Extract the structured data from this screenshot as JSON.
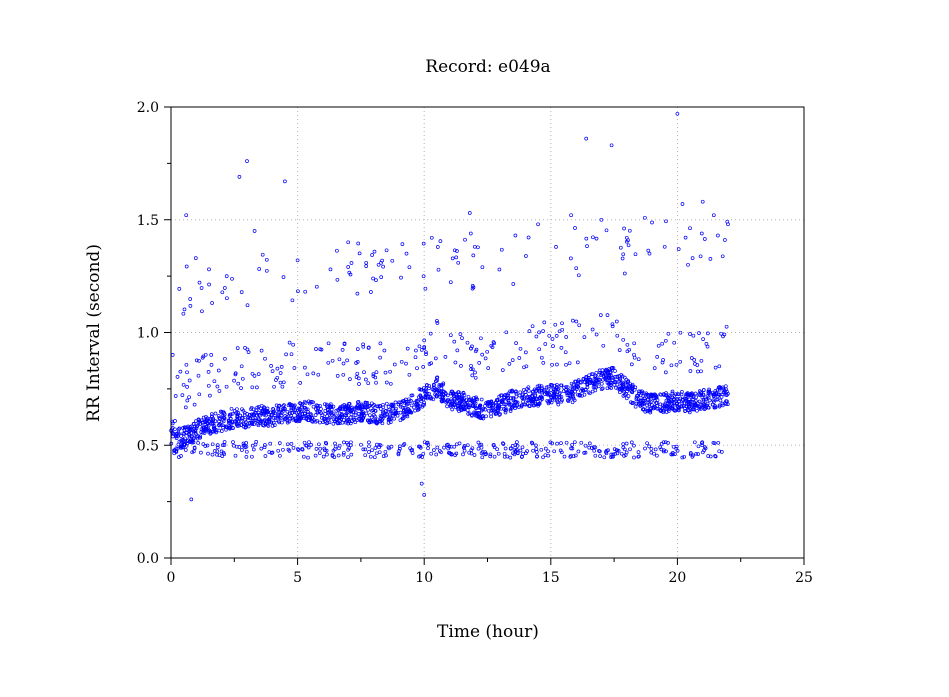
{
  "chart_data": {
    "type": "scatter",
    "title": "Record:  e049a",
    "xlabel": "Time (hour)",
    "ylabel": "RR Interval (second)",
    "xlim": [
      0,
      25
    ],
    "ylim": [
      0,
      2
    ],
    "xticks": [
      0,
      5,
      10,
      15,
      20,
      25
    ],
    "xtick_labels": [
      "0",
      "5",
      "10",
      "15",
      "20",
      "25"
    ],
    "yticks": [
      0.0,
      0.5,
      1.0,
      1.5,
      2.0
    ],
    "ytick_labels": [
      "0.0",
      "0.5",
      "1.0",
      "1.5",
      "2.0"
    ],
    "grid": true,
    "marker_color": "#0000ff",
    "series_color": "#0000ff",
    "baseline": {
      "x": [
        0,
        0.3,
        0.7,
        1.2,
        1.8,
        2.5,
        3.0,
        3.5,
        4.0,
        4.5,
        5.0,
        5.5,
        6.0,
        6.5,
        7.0,
        7.5,
        8.0,
        8.5,
        9.0,
        9.5,
        10.0,
        10.5,
        11.0,
        11.5,
        12.0,
        12.5,
        13.0,
        13.5,
        14.0,
        14.5,
        15.0,
        15.5,
        16.0,
        16.5,
        17.0,
        17.5,
        18.0,
        18.5,
        19.0,
        19.5,
        20.0,
        20.5,
        21.0,
        21.5,
        22.0
      ],
      "y": [
        0.6,
        0.53,
        0.54,
        0.58,
        0.6,
        0.62,
        0.62,
        0.63,
        0.63,
        0.64,
        0.65,
        0.65,
        0.64,
        0.64,
        0.64,
        0.65,
        0.64,
        0.64,
        0.65,
        0.68,
        0.72,
        0.76,
        0.7,
        0.69,
        0.67,
        0.66,
        0.68,
        0.7,
        0.71,
        0.72,
        0.73,
        0.72,
        0.74,
        0.77,
        0.79,
        0.8,
        0.75,
        0.7,
        0.68,
        0.69,
        0.7,
        0.69,
        0.7,
        0.71,
        0.72
      ]
    },
    "outliers": {
      "x": [
        0.6,
        1.5,
        2.2,
        2.7,
        3.0,
        4.5,
        5.0,
        6.3,
        7.0,
        8.2,
        9.3,
        10.3,
        11.8,
        12.0,
        13.6,
        14.5,
        15.8,
        16.4,
        17.0,
        17.4,
        18.0,
        18.9,
        19.5,
        20.0,
        20.2,
        20.6,
        21.0,
        21.6,
        22.0,
        3.3,
        10.0,
        0.8,
        9.9
      ],
      "y": [
        1.52,
        1.28,
        1.25,
        1.69,
        1.76,
        1.67,
        1.32,
        1.28,
        1.4,
        1.3,
        1.35,
        1.42,
        1.53,
        1.38,
        1.43,
        1.48,
        1.52,
        1.86,
        1.5,
        1.83,
        1.42,
        1.35,
        1.38,
        1.97,
        1.57,
        1.33,
        1.58,
        1.43,
        1.48,
        1.45,
        0.28,
        0.26,
        0.33
      ]
    }
  }
}
